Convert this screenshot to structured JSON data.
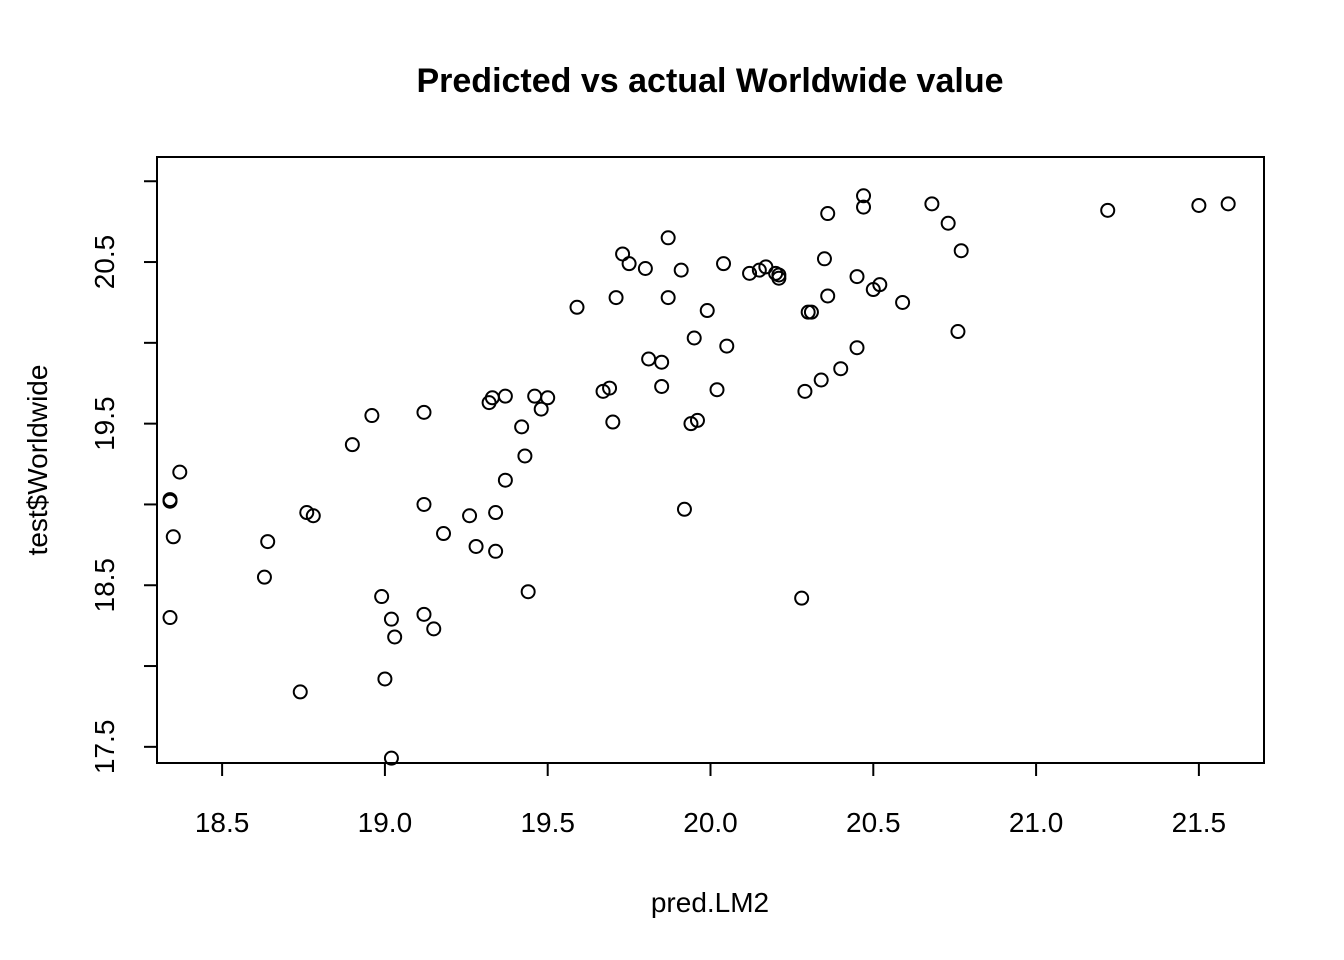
{
  "chart_data": {
    "type": "scatter",
    "title": "Predicted vs actual Worldwide value",
    "xlabel": "pred.LM2",
    "ylabel": "test$Worldwide",
    "xlim": [
      18.3,
      21.7
    ],
    "ylim": [
      17.4,
      21.15
    ],
    "xticks": [
      18.5,
      19.0,
      19.5,
      20.0,
      20.5,
      21.0,
      21.5
    ],
    "xtick_labels": [
      "18.5",
      "19.0",
      "19.5",
      "20.0",
      "20.5",
      "21.0",
      "21.5"
    ],
    "yticks": [
      17.5,
      18.0,
      18.5,
      19.0,
      19.5,
      20.0,
      20.5,
      21.0
    ],
    "ytick_labels": [
      "17.5",
      "",
      "18.5",
      "",
      "19.5",
      "",
      "20.5",
      ""
    ],
    "grid": false,
    "marker": "open-circle",
    "x": [
      18.34,
      18.35,
      18.34,
      18.37,
      18.34,
      18.63,
      18.64,
      18.74,
      18.76,
      18.78,
      18.9,
      18.96,
      18.99,
      19.0,
      19.02,
      19.02,
      19.03,
      19.12,
      19.12,
      19.12,
      19.15,
      19.18,
      19.26,
      19.28,
      19.32,
      19.33,
      19.34,
      19.34,
      19.37,
      19.37,
      19.42,
      19.43,
      19.44,
      19.46,
      19.48,
      19.5,
      19.59,
      19.67,
      19.69,
      19.7,
      19.71,
      19.73,
      19.75,
      19.8,
      19.81,
      19.85,
      19.85,
      19.87,
      19.87,
      19.91,
      19.92,
      19.94,
      19.95,
      19.96,
      19.99,
      20.02,
      20.04,
      20.05,
      20.12,
      20.15,
      20.17,
      20.2,
      20.21,
      20.21,
      20.28,
      20.29,
      20.3,
      20.31,
      20.34,
      20.35,
      20.36,
      20.36,
      20.4,
      20.45,
      20.45,
      20.47,
      20.47,
      20.5,
      20.52,
      20.59,
      20.68,
      20.73,
      20.76,
      20.77,
      21.22,
      21.5,
      21.59
    ],
    "y": [
      19.02,
      18.8,
      18.3,
      19.2,
      19.03,
      18.55,
      18.77,
      17.84,
      18.95,
      18.93,
      19.37,
      19.55,
      18.43,
      17.92,
      18.29,
      17.43,
      18.18,
      19.57,
      19.0,
      18.32,
      18.23,
      18.82,
      18.93,
      18.74,
      19.63,
      19.66,
      18.95,
      18.71,
      19.15,
      19.67,
      19.48,
      19.3,
      18.46,
      19.67,
      19.59,
      19.66,
      20.22,
      19.7,
      19.72,
      19.51,
      20.28,
      20.55,
      20.49,
      20.46,
      19.9,
      19.73,
      19.88,
      20.28,
      20.65,
      20.45,
      18.97,
      19.5,
      20.03,
      19.52,
      20.2,
      19.71,
      20.49,
      19.98,
      20.43,
      20.45,
      20.47,
      20.43,
      20.4,
      20.42,
      18.42,
      19.7,
      20.19,
      20.19,
      19.77,
      20.52,
      20.29,
      20.8,
      19.84,
      19.97,
      20.41,
      20.91,
      20.84,
      20.33,
      20.36,
      20.25,
      20.86,
      20.74,
      20.07,
      20.57,
      20.82,
      20.85,
      20.86
    ]
  }
}
